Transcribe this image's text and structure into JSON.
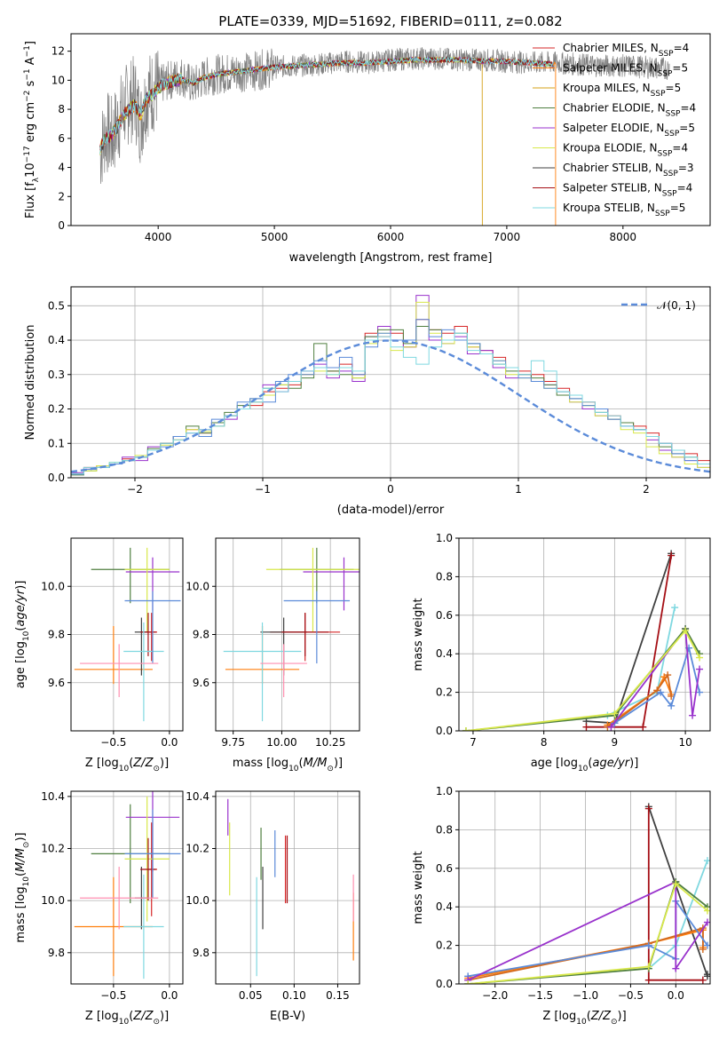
{
  "figure": {
    "title": "PLATE=0339, MJD=51692, FIBERID=0111, z=0.082"
  },
  "chart_data": [
    {
      "id": "spectrum",
      "type": "line",
      "title": "PLATE=0339, MJD=51692, FIBERID=0111, z=0.082",
      "xlabel": "wavelength [Angstrom, rest frame]",
      "ylabel": "Flux [f_λ 10^-17 erg cm^-2 s^-1 A^-1]",
      "xlim": [
        3250,
        8750
      ],
      "ylim": [
        0,
        13.2
      ],
      "xticks": [
        4000,
        5000,
        6000,
        7000,
        8000
      ],
      "yticks": [
        0,
        2,
        4,
        6,
        8,
        10,
        12
      ],
      "grid": false,
      "legend_position": "right",
      "data_trace": {
        "color": "#808080",
        "x": [
          3500,
          3550,
          3600,
          3650,
          3700,
          3750,
          3800,
          3850,
          3900,
          3950,
          4000,
          4100,
          4200,
          4300,
          4400,
          4500,
          4600,
          4800,
          5000,
          5200,
          5400,
          5600,
          5800,
          6000,
          6200,
          6400,
          6600,
          6800,
          7000,
          7200,
          7400,
          7600,
          7800,
          8000,
          8200,
          8400
        ],
        "y": [
          5.0,
          6.5,
          6.0,
          7.0,
          8.0,
          8.5,
          8.8,
          7.0,
          9.0,
          9.2,
          9.6,
          10.0,
          10.3,
          9.6,
          10.2,
          10.4,
          10.5,
          10.6,
          10.9,
          11.0,
          11.1,
          11.3,
          11.2,
          11.4,
          11.5,
          11.5,
          11.4,
          11.4,
          11.3,
          11.2,
          11.2,
          11.1,
          11.0,
          11.0,
          10.9,
          10.8
        ]
      },
      "model_trace": {
        "x": [
          3500,
          3550,
          3600,
          3650,
          3700,
          3750,
          3800,
          3850,
          3900,
          3950,
          4000,
          4100,
          4200,
          4300,
          4400,
          4500,
          4600,
          4800,
          5000,
          5200,
          5400,
          5600,
          5800,
          6000,
          6200,
          6400,
          6600,
          6800,
          7000,
          7200,
          7400
        ],
        "y": [
          5.3,
          6.0,
          6.2,
          6.8,
          7.6,
          8.0,
          8.3,
          7.6,
          8.8,
          9.0,
          9.5,
          9.9,
          10.1,
          9.8,
          10.2,
          10.4,
          10.5,
          10.7,
          10.9,
          11.0,
          11.1,
          11.2,
          11.2,
          11.3,
          11.4,
          11.4,
          11.4,
          11.3,
          11.3,
          11.2,
          11.1
        ]
      },
      "series": [
        {
          "name": "Chabrier MILES, N_SSP=4",
          "label_main": "Chabrier MILES, N",
          "sub": "SSP",
          "suffix": "=4",
          "color": "#d62728"
        },
        {
          "name": "Salpeter MILES, N_SSP=5",
          "label_main": "Salpeter MILES, N",
          "sub": "SSP",
          "suffix": "=5",
          "color": "#ff7f0e"
        },
        {
          "name": "Kroupa MILES, N_SSP=5",
          "label_main": "Kroupa MILES, N",
          "sub": "SSP",
          "suffix": "=5",
          "color": "#d4a017"
        },
        {
          "name": "Chabrier ELODIE, N_SSP=4",
          "label_main": "Chabrier ELODIE, N",
          "sub": "SSP",
          "suffix": "=4",
          "color": "#4f7f3f"
        },
        {
          "name": "Salpeter ELODIE, N_SSP=5",
          "label_main": "Salpeter ELODIE, N",
          "sub": "SSP",
          "suffix": "=5",
          "color": "#9932cc"
        },
        {
          "name": "Kroupa ELODIE, N_SSP=4",
          "label_main": "Kroupa ELODIE, N",
          "sub": "SSP",
          "suffix": "=4",
          "color": "#d8e84a"
        },
        {
          "name": "Chabrier STELIB, N_SSP=3",
          "label_main": "Chabrier STELIB, N",
          "sub": "SSP",
          "suffix": "=3",
          "color": "#404040"
        },
        {
          "name": "Salpeter STELIB, N_SSP=4",
          "label_main": "Salpeter STELIB, N",
          "sub": "SSP",
          "suffix": "=4",
          "color": "#a50f15"
        },
        {
          "name": "Kroupa STELIB, N_SSP=5",
          "label_main": "Kroupa STELIB, N",
          "sub": "SSP",
          "suffix": "=5",
          "color": "#7fd8e0"
        }
      ]
    },
    {
      "id": "residuals",
      "type": "line",
      "xlabel": "(data-model)/error",
      "ylabel": "Normed distribution",
      "xlim": [
        -2.5,
        2.5
      ],
      "ylim": [
        0,
        0.555
      ],
      "xticks": [
        -2,
        -1,
        0,
        1,
        2
      ],
      "yticks": [
        0.0,
        0.1,
        0.2,
        0.3,
        0.4,
        0.5
      ],
      "grid": true,
      "legend_position": "top-right",
      "gaussian": {
        "name": "𝒩(0, 1)",
        "mean": 0,
        "sigma": 1,
        "color": "#5b8bd9"
      },
      "bin_width": 0.1,
      "bin_start": -2.5,
      "histograms": [
        {
          "color": "#d62728",
          "values": [
            0.012,
            0.03,
            0.035,
            0.04,
            0.055,
            0.06,
            0.08,
            0.1,
            0.11,
            0.14,
            0.13,
            0.16,
            0.18,
            0.2,
            0.21,
            0.25,
            0.26,
            0.27,
            0.3,
            0.32,
            0.31,
            0.33,
            0.3,
            0.42,
            0.41,
            0.42,
            0.38,
            0.46,
            0.43,
            0.42,
            0.44,
            0.38,
            0.37,
            0.35,
            0.32,
            0.31,
            0.3,
            0.28,
            0.26,
            0.24,
            0.22,
            0.2,
            0.18,
            0.16,
            0.15,
            0.13,
            0.1,
            0.08,
            0.07,
            0.05
          ]
        },
        {
          "color": "#9932cc",
          "values": [
            0.015,
            0.025,
            0.03,
            0.04,
            0.06,
            0.05,
            0.09,
            0.1,
            0.12,
            0.13,
            0.14,
            0.15,
            0.17,
            0.2,
            0.22,
            0.27,
            0.25,
            0.28,
            0.31,
            0.33,
            0.29,
            0.31,
            0.28,
            0.41,
            0.44,
            0.4,
            0.38,
            0.53,
            0.4,
            0.39,
            0.41,
            0.36,
            0.37,
            0.32,
            0.29,
            0.3,
            0.28,
            0.27,
            0.25,
            0.22,
            0.2,
            0.18,
            0.17,
            0.15,
            0.14,
            0.11,
            0.08,
            0.06,
            0.05,
            0.03
          ]
        },
        {
          "color": "#4f7f3f",
          "values": [
            0.008,
            0.02,
            0.03,
            0.04,
            0.05,
            0.06,
            0.085,
            0.1,
            0.12,
            0.15,
            0.13,
            0.16,
            0.19,
            0.21,
            0.23,
            0.26,
            0.27,
            0.26,
            0.29,
            0.39,
            0.31,
            0.3,
            0.29,
            0.41,
            0.43,
            0.43,
            0.39,
            0.44,
            0.43,
            0.4,
            0.42,
            0.39,
            0.36,
            0.33,
            0.31,
            0.3,
            0.29,
            0.27,
            0.24,
            0.23,
            0.21,
            0.19,
            0.17,
            0.16,
            0.14,
            0.12,
            0.09,
            0.07,
            0.06,
            0.04
          ]
        },
        {
          "color": "#d8e84a",
          "values": [
            0.01,
            0.02,
            0.035,
            0.045,
            0.05,
            0.065,
            0.08,
            0.095,
            0.11,
            0.14,
            0.135,
            0.15,
            0.18,
            0.2,
            0.22,
            0.24,
            0.27,
            0.28,
            0.3,
            0.31,
            0.3,
            0.32,
            0.29,
            0.39,
            0.42,
            0.37,
            0.38,
            0.51,
            0.42,
            0.39,
            0.4,
            0.38,
            0.36,
            0.34,
            0.3,
            0.29,
            0.28,
            0.26,
            0.25,
            0.22,
            0.21,
            0.18,
            0.17,
            0.14,
            0.13,
            0.09,
            0.07,
            0.06,
            0.04,
            0.03
          ]
        },
        {
          "color": "#5b8bd9",
          "values": [
            0.01,
            0.025,
            0.03,
            0.04,
            0.05,
            0.06,
            0.08,
            0.09,
            0.12,
            0.13,
            0.12,
            0.17,
            0.18,
            0.22,
            0.23,
            0.22,
            0.28,
            0.3,
            0.3,
            0.34,
            0.32,
            0.35,
            0.3,
            0.38,
            0.42,
            0.4,
            0.4,
            0.46,
            0.41,
            0.43,
            0.4,
            0.39,
            0.36,
            0.34,
            0.32,
            0.29,
            0.28,
            0.26,
            0.25,
            0.23,
            0.21,
            0.2,
            0.17,
            0.15,
            0.14,
            0.12,
            0.1,
            0.07,
            0.05,
            0.04
          ]
        },
        {
          "color": "#7fd8e0",
          "values": [
            0.012,
            0.03,
            0.03,
            0.045,
            0.05,
            0.06,
            0.08,
            0.1,
            0.11,
            0.13,
            0.14,
            0.15,
            0.18,
            0.2,
            0.22,
            0.26,
            0.25,
            0.28,
            0.31,
            0.32,
            0.3,
            0.32,
            0.31,
            0.4,
            0.41,
            0.38,
            0.35,
            0.33,
            0.38,
            0.4,
            0.42,
            0.37,
            0.36,
            0.33,
            0.32,
            0.3,
            0.34,
            0.31,
            0.25,
            0.24,
            0.22,
            0.19,
            0.18,
            0.15,
            0.14,
            0.12,
            0.1,
            0.08,
            0.06,
            0.04
          ]
        }
      ]
    },
    {
      "id": "z_age",
      "type": "scatter",
      "xlabel": "Z [log10(Z/Z⊙)]",
      "ylabel": "age [log10(age/yr)]",
      "xlim": [
        -0.88,
        0.12
      ],
      "ylim": [
        9.4,
        10.2
      ],
      "xticks": [
        -0.5,
        0.0
      ],
      "yticks": [
        9.6,
        9.8,
        10.0
      ],
      "grid": true
    },
    {
      "id": "mass_age",
      "type": "scatter",
      "xlabel": "mass [log10(M/M⊙)]",
      "ylabel": "",
      "xlim": [
        9.66,
        10.4
      ],
      "ylim": [
        9.4,
        10.2
      ],
      "xticks": [
        9.75,
        10.0,
        10.25
      ],
      "yticks": [
        9.6,
        9.8,
        10.0
      ],
      "grid": true
    },
    {
      "id": "age_weight",
      "type": "line",
      "xlabel": "age [log10(age/yr)]",
      "ylabel": "mass weight",
      "xlim": [
        6.8,
        10.35
      ],
      "ylim": [
        0,
        1.0
      ],
      "xticks": [
        7,
        8,
        9,
        10
      ],
      "yticks": [
        0.0,
        0.2,
        0.4,
        0.6,
        0.8,
        1.0
      ],
      "grid": true
    },
    {
      "id": "z_mass",
      "type": "scatter",
      "xlabel": "Z [log10(Z/Z⊙)]",
      "ylabel": "mass [log10(M/M⊙)]",
      "xlim": [
        -0.88,
        0.12
      ],
      "ylim": [
        9.68,
        10.42
      ],
      "xticks": [
        -0.5,
        0.0
      ],
      "yticks": [
        9.8,
        10.0,
        10.2,
        10.4
      ],
      "grid": true
    },
    {
      "id": "ebv_mass",
      "type": "scatter",
      "xlabel": "E(B-V)",
      "ylabel": "",
      "xlim": [
        0.01,
        0.175
      ],
      "ylim": [
        9.68,
        10.42
      ],
      "xticks": [
        0.05,
        0.1,
        0.15
      ],
      "yticks": [
        9.8,
        10.0,
        10.2,
        10.4
      ],
      "grid": true
    },
    {
      "id": "z_weight",
      "type": "line",
      "xlabel": "Z [log10(Z/Z⊙)]",
      "ylabel": "mass weight",
      "xlim": [
        -2.4,
        0.38
      ],
      "ylim": [
        0,
        1.0
      ],
      "xticks": [
        -2.0,
        -1.5,
        -1.0,
        -0.5,
        0.0
      ],
      "yticks": [
        0.0,
        0.2,
        0.4,
        0.6,
        0.8,
        1.0
      ],
      "grid": true
    }
  ],
  "fits": [
    {
      "color": "#d62728",
      "z": -0.16,
      "zerr": 0.05,
      "age": 9.81,
      "ageerr_lo": 0.12,
      "ageerr_hi": 0.08,
      "mass": 10.12,
      "masserr": 0.18,
      "ebv": 0.09,
      "ebverr": 0.13
    },
    {
      "color": "#ff7f0e",
      "z": -0.5,
      "zerr": 0.35,
      "age": 9.655,
      "ageerr_lo": 0.06,
      "ageerr_hi": 0.18,
      "mass": 9.9,
      "masserr": 0.19,
      "ebv": 0.168,
      "ebverr": 0.13
    },
    {
      "color": "#4f7f3f",
      "z": -0.35,
      "zerr": 0.35,
      "age": 10.07,
      "ageerr_lo": 0.14,
      "ageerr_hi": 0.09,
      "mass": 10.18,
      "masserr": 0.19,
      "ebv": 0.062,
      "ebverr": 0.1
    },
    {
      "color": "#9932cc",
      "z": -0.15,
      "zerr": 0.24,
      "age": 10.06,
      "ageerr_lo": 0.16,
      "ageerr_hi": 0.06,
      "mass": 10.32,
      "masserr": 0.21,
      "ebv": 0.024,
      "ebverr": 0.07
    },
    {
      "color": "#d8e84a",
      "z": -0.2,
      "zerr": 0.2,
      "age": 10.07,
      "ageerr_lo": 0.26,
      "ageerr_hi": 0.09,
      "mass": 10.16,
      "masserr": 0.24,
      "ebv": 0.026,
      "ebverr": 0.14
    },
    {
      "color": "#404040",
      "z": -0.25,
      "zerr": 0.06,
      "age": 9.81,
      "ageerr_lo": 0.18,
      "ageerr_hi": 0.06,
      "mass": 10.01,
      "masserr": 0.12,
      "ebv": 0.064,
      "ebverr": 0.12
    },
    {
      "color": "#a50f15",
      "z": -0.19,
      "zerr": 0.07,
      "age": 9.81,
      "ageerr_lo": 0.1,
      "ageerr_hi": 0.08,
      "mass": 10.12,
      "masserr": 0.12,
      "ebv": 0.092,
      "ebverr": 0.13
    },
    {
      "color": "#7fd8e0",
      "z": -0.23,
      "zerr": 0.18,
      "age": 9.73,
      "ageerr_lo": 0.29,
      "ageerr_hi": 0.12,
      "mass": 9.9,
      "masserr": 0.2,
      "ebv": 0.057,
      "ebverr": 0.19
    },
    {
      "color": "#5b8bd9",
      "z": -0.15,
      "zerr": 0.25,
      "age": 9.94,
      "ageerr_lo": 0.26,
      "ageerr_hi": 0.04,
      "mass": 10.18,
      "masserr": 0.17,
      "ebv": 0.078,
      "ebverr": 0.09
    },
    {
      "color": "#ff8fb1",
      "z": -0.45,
      "zerr": 0.35,
      "age": 9.68,
      "ageerr_lo": 0.14,
      "ageerr_hi": 0.08,
      "mass": 10.01,
      "masserr": 0.12,
      "ebv": 0.168,
      "ebverr": 0.09
    }
  ],
  "weights": [
    {
      "color": "#404040",
      "age": [
        8.6,
        9.0,
        9.8
      ],
      "zw": [
        0.35,
        0.35,
        -0.3
      ],
      "w": [
        0.05,
        0.04,
        0.92
      ]
    },
    {
      "color": "#a50f15",
      "age": [
        8.6,
        9.4,
        9.8
      ],
      "zw": [
        0.3,
        -0.3,
        -0.3
      ],
      "w": [
        0.02,
        0.02,
        0.91
      ]
    },
    {
      "color": "#7fd8e0",
      "age": [
        8.9,
        9.6,
        9.85
      ],
      "zw": [
        -0.3,
        0.0,
        0.35
      ],
      "w": [
        0.08,
        0.2,
        0.64
      ]
    },
    {
      "color": "#ff7f0e",
      "age": [
        8.9,
        9.6,
        9.7,
        9.8
      ],
      "zw": [
        -2.3,
        -0.3,
        0.3,
        0.3
      ],
      "w": [
        0.03,
        0.21,
        0.28,
        0.19
      ]
    },
    {
      "color": "#d2691e",
      "age": [
        8.9,
        9.6,
        9.75,
        9.8
      ],
      "zw": [
        -2.3,
        -0.3,
        0.3,
        0.3
      ],
      "w": [
        0.02,
        0.21,
        0.29,
        0.18
      ]
    },
    {
      "color": "#5b8bd9",
      "age": [
        9.0,
        9.65,
        9.8,
        10.05,
        10.2
      ],
      "zw": [
        -2.3,
        -0.3,
        0.0,
        0.0,
        0.35
      ],
      "w": [
        0.04,
        0.2,
        0.13,
        0.43,
        0.2
      ]
    },
    {
      "color": "#9932cc",
      "age": [
        8.95,
        10.0,
        10.1,
        10.2
      ],
      "zw": [
        -2.3,
        0.0,
        0.0,
        0.35
      ],
      "w": [
        0.02,
        0.53,
        0.08,
        0.32
      ]
    },
    {
      "color": "#4f7f3f",
      "age": [
        6.9,
        9.0,
        10.0,
        10.2
      ],
      "zw": [
        -2.3,
        -0.3,
        0.0,
        0.35
      ],
      "w": [
        0.0,
        0.08,
        0.53,
        0.4
      ]
    },
    {
      "color": "#d8e84a",
      "age": [
        6.9,
        9.0,
        10.0,
        10.2
      ],
      "zw": [
        -2.3,
        -0.3,
        0.0,
        0.35
      ],
      "w": [
        0.0,
        0.09,
        0.52,
        0.38
      ]
    }
  ]
}
